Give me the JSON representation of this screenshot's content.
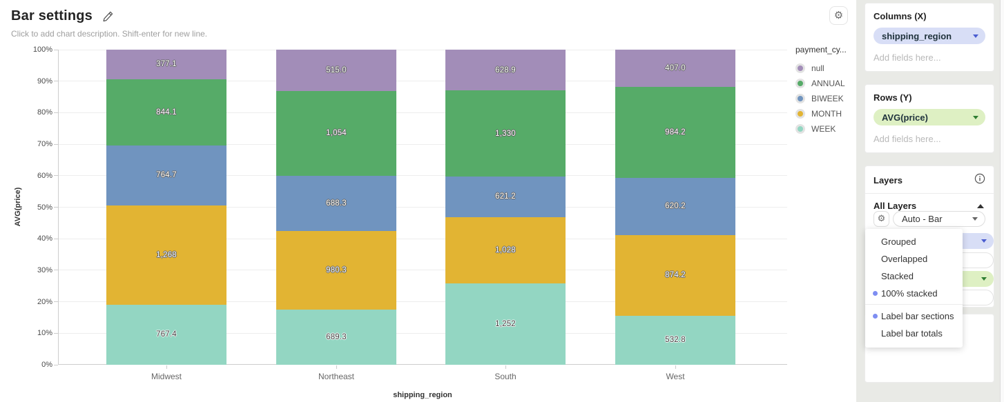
{
  "header": {
    "title": "Bar settings",
    "subtitle": "Click to add chart description. Shift-enter for new line."
  },
  "chart_data": {
    "type": "bar",
    "variant": "100% stacked",
    "orientation": "vertical",
    "title": "",
    "xlabel": "shipping_region",
    "ylabel": "AVG(price)",
    "categories": [
      "Midwest",
      "Northeast",
      "South",
      "West"
    ],
    "series": [
      {
        "name": "null",
        "color": "#a28db8",
        "values": [
          377.1,
          515.0,
          628.9,
          407.0
        ],
        "labels": [
          "377.1",
          "515.0",
          "628.9",
          "407.0"
        ]
      },
      {
        "name": "ANNUAL",
        "color": "#56ab68",
        "values": [
          844.1,
          1054,
          1330,
          984.2
        ],
        "labels": [
          "844.1",
          "1,054",
          "1,330",
          "984.2"
        ]
      },
      {
        "name": "BIWEEK",
        "color": "#7094bf",
        "values": [
          764.7,
          688.3,
          621.2,
          620.2
        ],
        "labels": [
          "764.7",
          "688.3",
          "621.2",
          "620.2"
        ]
      },
      {
        "name": "MONTH",
        "color": "#e2b433",
        "values": [
          1268,
          980.3,
          1028,
          874.2
        ],
        "labels": [
          "1,268",
          "980.3",
          "1,028",
          "874.2"
        ]
      },
      {
        "name": "WEEK",
        "color": "#93d6c2",
        "values": [
          767.4,
          689.3,
          1252,
          532.8
        ],
        "labels": [
          "767.4",
          "689.3",
          "1,252",
          "532.8"
        ]
      }
    ],
    "stack_order_top_to_bottom": [
      "null",
      "ANNUAL",
      "BIWEEK",
      "MONTH",
      "WEEK"
    ],
    "y_ticks": [
      "0%",
      "10%",
      "20%",
      "30%",
      "40%",
      "50%",
      "60%",
      "70%",
      "80%",
      "90%",
      "100%"
    ],
    "ylim": [
      0,
      100
    ],
    "grid": true,
    "legend_title": "payment_cy...",
    "legend_position": "right"
  },
  "sidebar": {
    "columns_panel": {
      "title": "Columns (X)",
      "field": "shipping_region",
      "placeholder": "Add fields here..."
    },
    "rows_panel": {
      "title": "Rows (Y)",
      "field": "AVG(price)",
      "placeholder": "Add fields here..."
    },
    "layers_panel": {
      "title": "Layers",
      "group_title": "All Layers",
      "layer_type_value": "Auto - Bar"
    },
    "bottom_panel": {
      "placeholder": "Add fields here..."
    }
  },
  "dropdown_menu": {
    "sections": [
      {
        "items": [
          {
            "label": "Grouped",
            "selected": false
          },
          {
            "label": "Overlapped",
            "selected": false
          },
          {
            "label": "Stacked",
            "selected": false
          },
          {
            "label": "100% stacked",
            "selected": true
          }
        ]
      },
      {
        "items": [
          {
            "label": "Label bar sections",
            "selected": true
          },
          {
            "label": "Label bar totals",
            "selected": false
          }
        ]
      }
    ],
    "selected_dot_color": "#7e8ef2"
  },
  "icons": {
    "edit": "pencil-icon",
    "chart_settings": "gear-icon",
    "layers_info": "info-icon",
    "collapse": "chevron-up-icon",
    "field_dropdown": "chevron-down-icon"
  },
  "colors": {
    "pill_dimension_bg": "#d8def6",
    "pill_dimension_caret": "#4a5cd0",
    "pill_measure_bg": "#def0c3",
    "pill_measure_caret": "#2e7d32",
    "sidebar_bg": "#e9eae6",
    "grid_line": "#ededed",
    "axis_line": "#cccccc"
  }
}
